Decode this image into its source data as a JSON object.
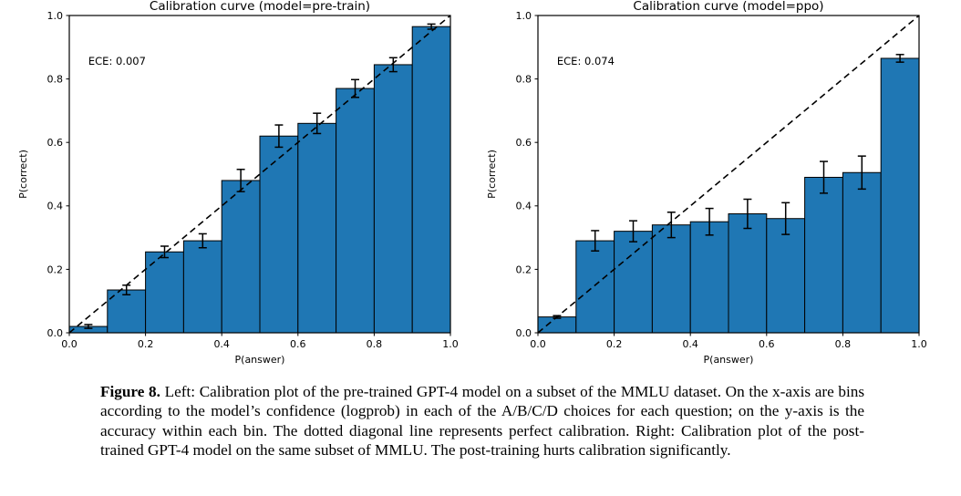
{
  "page": {
    "background": "#ffffff"
  },
  "caption": {
    "label": "Figure 8.",
    "text": "Left: Calibration plot of the pre-trained GPT-4 model on a subset of the MMLU dataset. On the x-axis are bins according to the model’s confidence (logprob) in each of the A/B/C/D choices for each question; on the y-axis is the accuracy within each bin. The dotted diagonal line represents perfect calibration. Right: Calibration plot of the post-trained GPT-4 model on the same subset of MMLU. The post-training hurts calibration significantly."
  },
  "chart_data": [
    {
      "type": "bar",
      "title": "Calibration curve (model=pre-train)",
      "annotation": "ECE: 0.007",
      "xlabel": "P(answer)",
      "ylabel": "P(correct)",
      "xlim": [
        0,
        1
      ],
      "ylim": [
        0,
        1
      ],
      "xticks": [
        0,
        0.2,
        0.4,
        0.6,
        0.8,
        1.0
      ],
      "yticks": [
        0,
        0.2,
        0.4,
        0.6,
        0.8,
        1.0
      ],
      "grid": false,
      "legend": null,
      "bin_width": 0.1,
      "bin_centers": [
        0.05,
        0.15,
        0.25,
        0.35,
        0.45,
        0.55,
        0.65,
        0.75,
        0.85,
        0.95
      ],
      "values": [
        0.02,
        0.135,
        0.255,
        0.29,
        0.48,
        0.62,
        0.66,
        0.77,
        0.845,
        0.965
      ],
      "errors": [
        0.006,
        0.015,
        0.018,
        0.022,
        0.035,
        0.035,
        0.032,
        0.028,
        0.022,
        0.008
      ],
      "diagonal": {
        "from": [
          0,
          0
        ],
        "to": [
          1,
          1
        ],
        "style": "dashed"
      },
      "bar_color": "#1f77b4",
      "bar_edge_color": "#000000",
      "errorbar_color": "#000000"
    },
    {
      "type": "bar",
      "title": "Calibration curve (model=ppo)",
      "annotation": "ECE: 0.074",
      "xlabel": "P(answer)",
      "ylabel": "P(correct)",
      "xlim": [
        0,
        1
      ],
      "ylim": [
        0,
        1
      ],
      "xticks": [
        0,
        0.2,
        0.4,
        0.6,
        0.8,
        1.0
      ],
      "yticks": [
        0,
        0.2,
        0.4,
        0.6,
        0.8,
        1.0
      ],
      "grid": false,
      "legend": null,
      "bin_width": 0.1,
      "bin_centers": [
        0.05,
        0.15,
        0.25,
        0.35,
        0.45,
        0.55,
        0.65,
        0.75,
        0.85,
        0.95
      ],
      "values": [
        0.05,
        0.29,
        0.32,
        0.34,
        0.35,
        0.375,
        0.36,
        0.49,
        0.505,
        0.865
      ],
      "errors": [
        0.004,
        0.032,
        0.033,
        0.04,
        0.042,
        0.046,
        0.05,
        0.05,
        0.052,
        0.012
      ],
      "diagonal": {
        "from": [
          0,
          0
        ],
        "to": [
          1,
          1
        ],
        "style": "dashed"
      },
      "bar_color": "#1f77b4",
      "bar_edge_color": "#000000",
      "errorbar_color": "#000000"
    }
  ]
}
